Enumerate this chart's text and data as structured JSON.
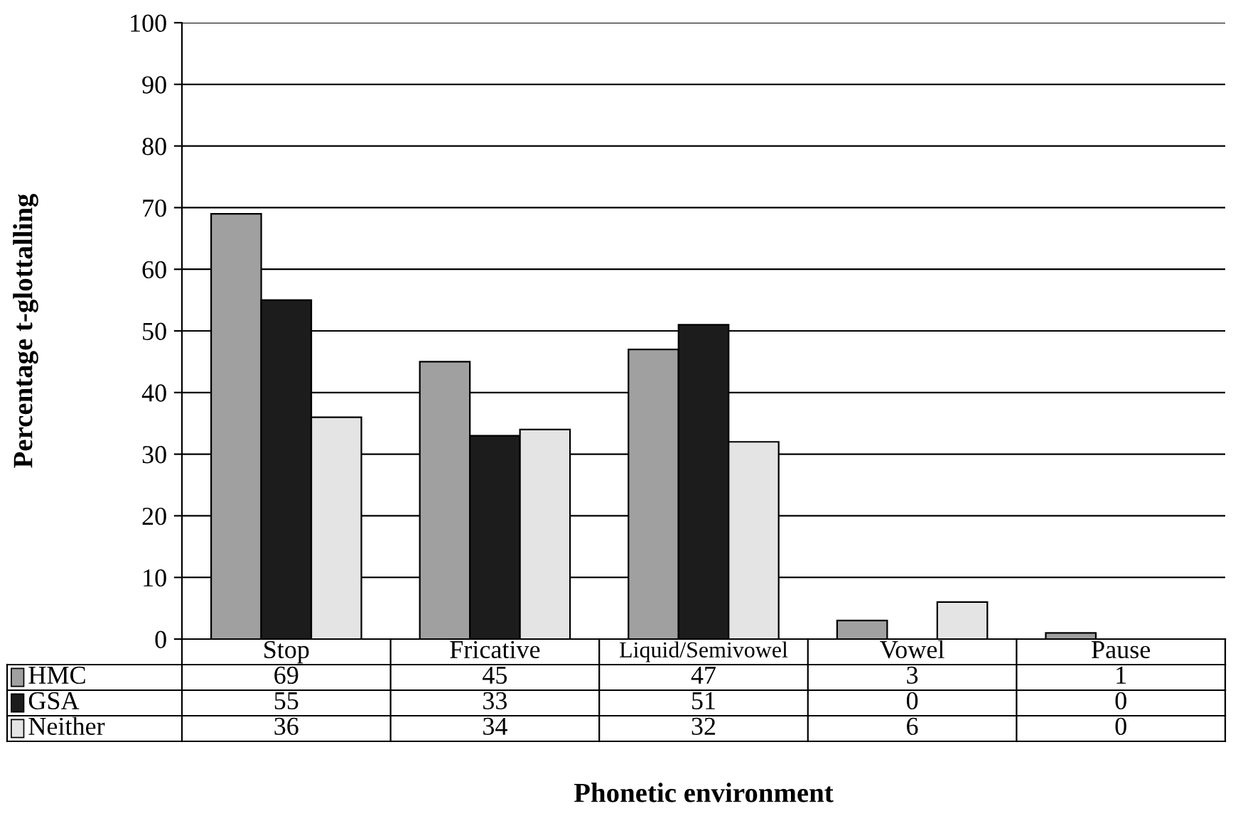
{
  "chart_data": {
    "type": "bar",
    "xlabel": "Phonetic environment",
    "ylabel": "Percentage t-glottalling",
    "categories": [
      "Stop",
      "Fricative",
      "Liquid/Semivowel",
      "Vowel",
      "Pause"
    ],
    "series": [
      {
        "name": "HMC",
        "color": "#a0a0a0",
        "values": [
          69,
          45,
          47,
          3,
          1
        ]
      },
      {
        "name": "GSA",
        "color": "#1c1c1c",
        "values": [
          55,
          33,
          51,
          0,
          0
        ]
      },
      {
        "name": "Neither",
        "color": "#e4e4e4",
        "values": [
          36,
          34,
          32,
          6,
          0
        ]
      }
    ],
    "ylim": [
      0,
      100
    ],
    "yticks": [
      0,
      10,
      20,
      30,
      40,
      50,
      60,
      70,
      80,
      90,
      100
    ],
    "grid": "y",
    "data_labels": true,
    "legend": "bottom left"
  }
}
